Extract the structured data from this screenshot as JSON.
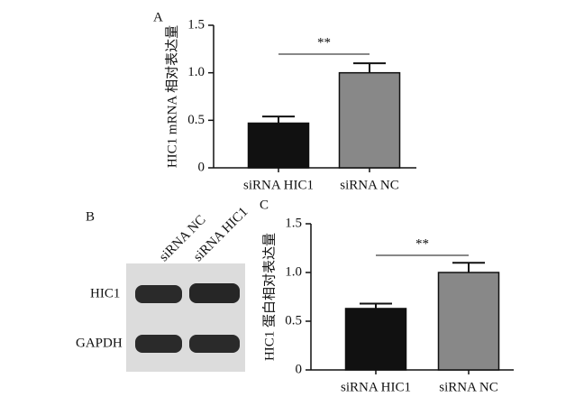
{
  "chart_data": [
    {
      "type": "bar",
      "panel": "A",
      "ylabel": "HIC1 mRNA 相对表达量",
      "categories": [
        "siRNA HIC1",
        "siRNA NC"
      ],
      "values": [
        0.47,
        1.0
      ],
      "errors": [
        0.07,
        0.1
      ],
      "colors": [
        "#111111",
        "#888888"
      ],
      "ylim": [
        0,
        1.5
      ],
      "yticks": [
        0,
        0.5,
        {
          "value": 1,
          "label": "1.0"
        },
        1.5
      ],
      "annotation": "**"
    },
    {
      "type": "bar",
      "panel": "C",
      "ylabel": "HIC1 蛋白相对表达量",
      "categories": [
        "siRNA HIC1",
        "siRNA NC"
      ],
      "values": [
        0.63,
        1.0
      ],
      "errors": [
        0.05,
        0.1
      ],
      "colors": [
        "#111111",
        "#888888"
      ],
      "ylim": [
        0,
        1.5
      ],
      "yticks": [
        0,
        0.5,
        {
          "value": 1,
          "label": "1.0"
        },
        1.5
      ],
      "annotation": "**"
    }
  ],
  "blot": {
    "panel": "B",
    "lanes": [
      "siRNA NC",
      "siRNA HIC1"
    ],
    "bands": [
      "HIC1",
      "GAPDH"
    ]
  }
}
